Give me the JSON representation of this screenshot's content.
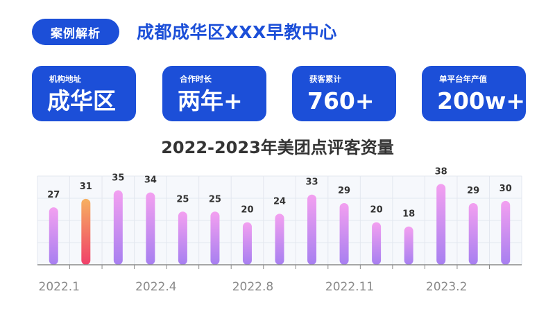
{
  "header": {
    "tag_label": "案例解析",
    "title": "成都成华区XXX早教中心"
  },
  "stats": [
    {
      "label": "机构地址",
      "value": "成华区"
    },
    {
      "label": "合作时长",
      "value": "两年+"
    },
    {
      "label": "获客累计",
      "value": "760+"
    },
    {
      "label": "单平台年产值",
      "value": "200w+"
    }
  ],
  "colors": {
    "brand": "#1c4fd8",
    "bar_gradient": [
      "#f3a0f0",
      "#a77ff0"
    ],
    "highlight_gradient": [
      "#f6b060",
      "#f0406a"
    ]
  },
  "chart_data": {
    "type": "bar",
    "title": "2022-2023年美团点评客资量",
    "values": [
      27,
      31,
      35,
      34,
      25,
      25,
      20,
      24,
      33,
      29,
      20,
      18,
      38,
      29,
      30
    ],
    "x_tick_labels": [
      "2022.1",
      "2022.4",
      "2022.8",
      "2022.11",
      "2023.2"
    ],
    "highlight_index": 1,
    "ylim": [
      0,
      40
    ],
    "grid": true
  }
}
